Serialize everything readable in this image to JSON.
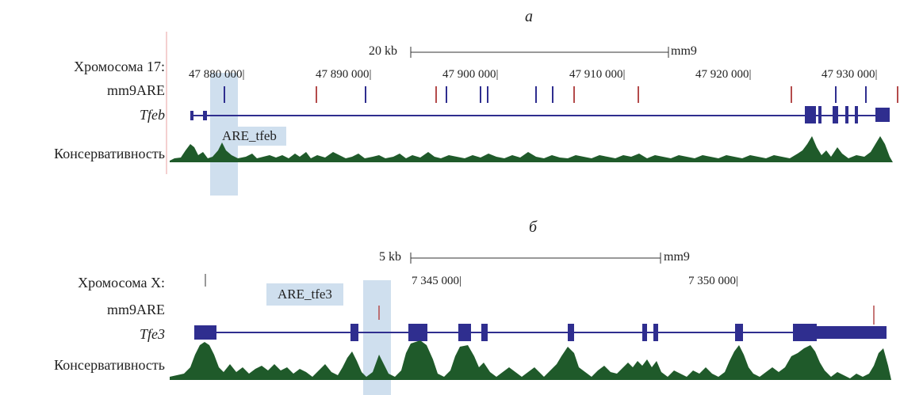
{
  "panel_a": {
    "label": "а",
    "scale_left": "20 kb",
    "scale_right": "mm9",
    "track_chrom": "Хромосома 17:",
    "track_are": "mm9ARE",
    "track_gene": "Tfeb",
    "track_cons": "Консервативность",
    "positions": [
      "47  880  000|",
      "47  890  000|",
      "47  900  000|",
      "47  910  000|",
      "47  920  000|",
      "47  930  000|"
    ],
    "highlight_label": "ARE_tfeb"
  },
  "panel_b": {
    "label": "б",
    "scale_left": "5 kb",
    "scale_right": "mm9",
    "track_chrom": "Хромосома X:",
    "track_are": "mm9ARE",
    "track_gene": "Tfe3",
    "track_cons": "Консервативность",
    "positions": [
      "7  345  000|",
      "7  350  000|"
    ],
    "highlight_label": "ARE_tfe3"
  },
  "colors": {
    "gene": "#2f2e8f",
    "are_red": "#b44b4b",
    "are_blue": "#2f2e8f",
    "conservation": "#1f5a2a",
    "highlight": "#c9dbec"
  }
}
